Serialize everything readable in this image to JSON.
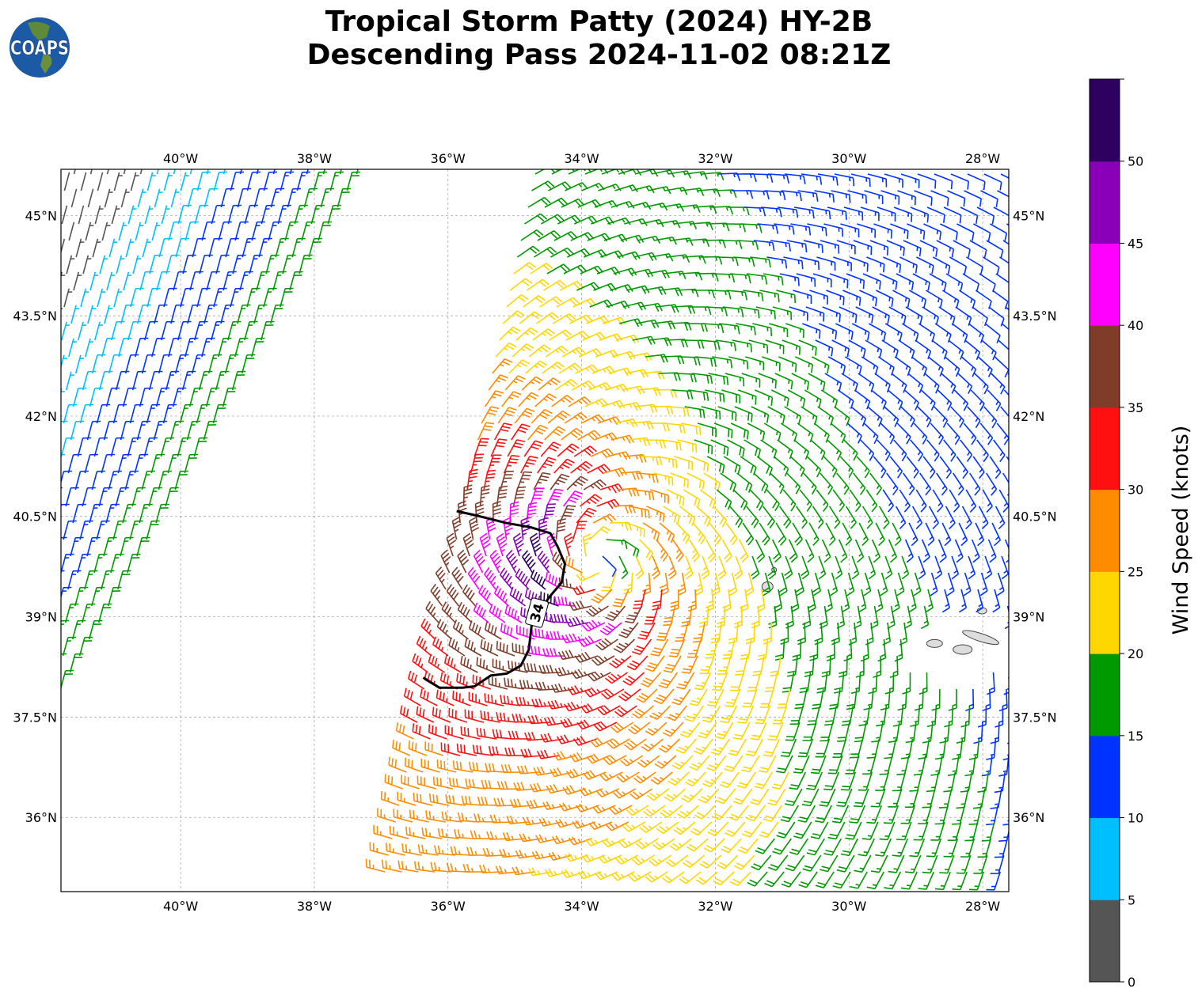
{
  "header": {
    "title_line1": "Tropical Storm Patty (2024) HY-2B",
    "title_line2": "Descending Pass 2024-11-02 08:21Z",
    "logo_text": "COAPS"
  },
  "chart_data": {
    "type": "wind-barb-map",
    "title": "Tropical Storm Patty (2024) HY-2B Descending Pass 2024-11-02 08:21Z",
    "lon_range": [
      -41.79,
      -27.61
    ],
    "lat_range": [
      34.89,
      45.69
    ],
    "lon_ticks": [
      -40,
      -38,
      -36,
      -34,
      -32,
      -30,
      -28
    ],
    "lon_tick_labels": [
      "40°W",
      "38°W",
      "36°W",
      "34°W",
      "32°W",
      "30°W",
      "28°W"
    ],
    "lat_ticks": [
      45,
      43.5,
      42,
      40.5,
      39,
      37.5,
      36
    ],
    "lat_tick_labels": [
      "45°N",
      "43.5°N",
      "42°N",
      "40.5°N",
      "39°N",
      "37.5°N",
      "36°N"
    ],
    "grid": true,
    "colorbar": {
      "label": "Wind Speed (knots)",
      "bounds": [
        0,
        5,
        10,
        15,
        20,
        25,
        30,
        35,
        40,
        45,
        50,
        55
      ],
      "tick_labels": [
        "0",
        "5",
        "10",
        "15",
        "20",
        "25",
        "30",
        "35",
        "40",
        "45",
        "50"
      ],
      "colors": [
        "#555555",
        "#00bfff",
        "#0033ff",
        "#009900",
        "#ffd700",
        "#ff8c00",
        "#ff1010",
        "#7f3c28",
        "#ff00ff",
        "#8a00b8",
        "#2e0060"
      ]
    },
    "storm_center": {
      "lon": -33.76,
      "lat": 39.87
    },
    "wind_model": {
      "vmax_kt": 40,
      "radius_max_deg": 0.95,
      "decay_exp": 0.4,
      "asymmetry": 0.32,
      "inflow_deg": 20
    },
    "swaths": [
      {
        "name": "main",
        "west_edge": [
          [
            -34.75,
            45.69
          ],
          [
            -37.01,
            35.2
          ]
        ]
      },
      {
        "name": "northwest",
        "east_edge": [
          [
            -37.23,
            45.69
          ],
          [
            -41.7,
            37.92
          ]
        ],
        "speed_at_edge_kt": 18,
        "direction_from_deg": 15
      }
    ],
    "contour_34kt": {
      "label": "34",
      "label_position": {
        "lon": -34.67,
        "lat": 39.06
      },
      "points": [
        [
          -35.87,
          40.58
        ],
        [
          -35.6,
          40.52
        ],
        [
          -35.12,
          40.4
        ],
        [
          -34.77,
          40.34
        ],
        [
          -34.47,
          40.25
        ],
        [
          -34.36,
          40.05
        ],
        [
          -34.25,
          39.79
        ],
        [
          -34.3,
          39.51
        ],
        [
          -34.47,
          39.31
        ],
        [
          -34.62,
          39.1
        ],
        [
          -34.75,
          38.86
        ],
        [
          -34.79,
          38.51
        ],
        [
          -34.91,
          38.27
        ],
        [
          -35.12,
          38.15
        ],
        [
          -35.36,
          38.12
        ],
        [
          -35.6,
          37.96
        ],
        [
          -35.78,
          37.94
        ],
        [
          -36.13,
          37.94
        ],
        [
          -36.37,
          38.09
        ]
      ]
    },
    "islands": [
      [
        -31.22,
        39.45
      ],
      [
        -31.12,
        39.7
      ],
      [
        -28.01,
        39.09
      ],
      [
        -28.72,
        38.6
      ],
      [
        -28.3,
        38.51
      ],
      [
        -28.03,
        38.69
      ]
    ]
  }
}
